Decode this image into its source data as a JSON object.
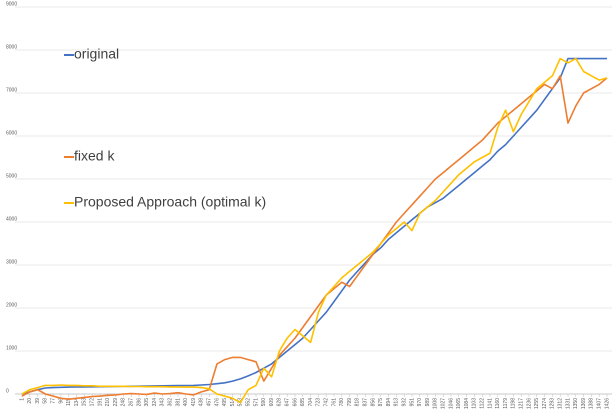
{
  "chart_data": {
    "type": "line",
    "x": [
      1,
      20,
      39,
      58,
      77,
      96,
      115,
      134,
      153,
      172,
      191,
      210,
      229,
      248,
      267,
      286,
      305,
      324,
      343,
      362,
      381,
      400,
      419,
      438,
      457,
      476,
      495,
      514,
      533,
      552,
      571,
      590,
      609,
      628,
      647,
      666,
      685,
      704,
      723,
      742,
      761,
      780,
      799,
      818,
      837,
      856,
      875,
      894,
      913,
      932,
      951,
      970,
      989,
      1008,
      1027,
      1046,
      1065,
      1084,
      1103,
      1122,
      1141,
      1160,
      1179,
      1198,
      1217,
      1236,
      1255,
      1274,
      1293,
      1312,
      1331,
      1350,
      1369,
      1388,
      1407,
      1426
    ],
    "series": [
      {
        "name": "original",
        "color": "#4472c4",
        "values": [
          0,
          50,
          100,
          140,
          150,
          155,
          160,
          162,
          165,
          168,
          170,
          172,
          175,
          178,
          180,
          182,
          185,
          188,
          190,
          192,
          195,
          198,
          200,
          210,
          220,
          240,
          260,
          300,
          350,
          420,
          500,
          600,
          700,
          850,
          1000,
          1150,
          1300,
          1500,
          1700,
          1900,
          2150,
          2400,
          2650,
          2850,
          3050,
          3250,
          3400,
          3600,
          3750,
          3900,
          4050,
          4200,
          4350,
          4450,
          4550,
          4700,
          4850,
          5000,
          5150,
          5300,
          5450,
          5650,
          5800,
          6000,
          6200,
          6400,
          6600,
          6850,
          7100,
          7350,
          7800,
          7800,
          7800,
          7800,
          7800,
          7800
        ]
      },
      {
        "name": "fixed k",
        "color": "#ed7d31",
        "values": [
          -50,
          50,
          100,
          0,
          -50,
          -100,
          -120,
          -100,
          -80,
          -60,
          -50,
          -30,
          -20,
          0,
          10,
          0,
          -10,
          20,
          0,
          10,
          30,
          0,
          -20,
          50,
          100,
          700,
          800,
          850,
          850,
          800,
          750,
          300,
          600,
          900,
          1100,
          1300,
          1550,
          1800,
          2050,
          2300,
          2450,
          2600,
          2500,
          2750,
          3000,
          3250,
          3500,
          3750,
          4000,
          4200,
          4400,
          4600,
          4800,
          5000,
          5150,
          5300,
          5450,
          5600,
          5750,
          5900,
          6100,
          6300,
          6450,
          6600,
          6750,
          6900,
          7050,
          7200,
          7100,
          7400,
          6300,
          6700,
          7000,
          7100,
          7200,
          7350
        ]
      },
      {
        "name": "Proposed Approach (optimal k)",
        "color": "#ffc000",
        "values": [
          0,
          100,
          150,
          200,
          200,
          210,
          200,
          200,
          190,
          190,
          180,
          180,
          180,
          180,
          175,
          175,
          170,
          170,
          170,
          165,
          165,
          160,
          160,
          150,
          120,
          0,
          -50,
          -100,
          -200,
          100,
          200,
          600,
          400,
          1000,
          1300,
          1500,
          1350,
          1200,
          1900,
          2300,
          2500,
          2700,
          2850,
          3000,
          3150,
          3300,
          3500,
          3700,
          3850,
          4000,
          3800,
          4200,
          4350,
          4500,
          4700,
          4900,
          5100,
          5250,
          5400,
          5500,
          5600,
          6200,
          6600,
          6100,
          6500,
          6800,
          7100,
          7250,
          7400,
          7800,
          7700,
          7800,
          7500,
          7400,
          7300,
          7350
        ]
      }
    ],
    "xlim": [
      1,
      1426
    ],
    "xticks": [
      1,
      20,
      39,
      58,
      77,
      96,
      115,
      134,
      153,
      172,
      191,
      210,
      229,
      248,
      267,
      286,
      305,
      324,
      343,
      362,
      381,
      400,
      419,
      438,
      457,
      476,
      495,
      514,
      533,
      552,
      571,
      590,
      609,
      628,
      647,
      666,
      685,
      704,
      723,
      742,
      761,
      780,
      799,
      818,
      837,
      856,
      875,
      894,
      913,
      932,
      951,
      970,
      989,
      1008,
      1027,
      1046,
      1065,
      1084,
      1103,
      1122,
      1141,
      1160,
      1179,
      1198,
      1217,
      1236,
      1255,
      1274,
      1293,
      1312,
      1331,
      1350,
      1369,
      1388,
      1407,
      1426
    ],
    "ylim": [
      0,
      9000
    ],
    "yticks": [
      0,
      1000,
      2000,
      3000,
      4000,
      5000,
      6000,
      7000,
      8000,
      9000
    ],
    "grid": true
  }
}
